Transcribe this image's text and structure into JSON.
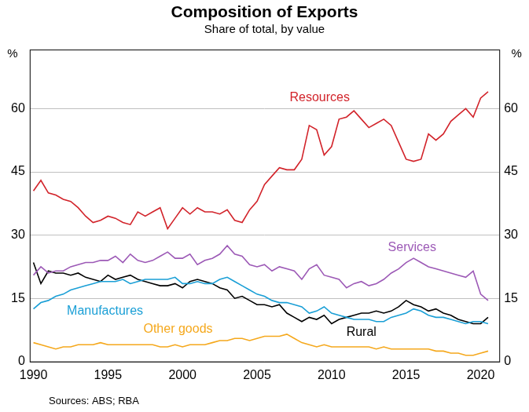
{
  "chart_data": {
    "type": "line",
    "title": "Composition of Exports",
    "subtitle": "Share of total, by value",
    "y_label": "%",
    "y2_label": "%",
    "source": "Sources: ABS; RBA",
    "x": [
      1990,
      1990.5,
      1991,
      1991.5,
      1992,
      1992.5,
      1993,
      1993.5,
      1994,
      1994.5,
      1995,
      1995.5,
      1996,
      1996.5,
      1997,
      1997.5,
      1998,
      1998.5,
      1999,
      1999.5,
      2000,
      2000.5,
      2001,
      2001.5,
      2002,
      2002.5,
      2003,
      2003.5,
      2004,
      2004.5,
      2005,
      2005.5,
      2006,
      2006.5,
      2007,
      2007.5,
      2008,
      2008.5,
      2009,
      2009.5,
      2010,
      2010.5,
      2011,
      2011.5,
      2012,
      2012.5,
      2013,
      2013.5,
      2014,
      2014.5,
      2015,
      2015.5,
      2016,
      2016.5,
      2017,
      2017.5,
      2018,
      2018.5,
      2019,
      2019.5,
      2020,
      2020.5
    ],
    "xlim": [
      1989.75,
      2021.25
    ],
    "xticks": [
      1990,
      1995,
      2000,
      2005,
      2010,
      2015,
      2020
    ],
    "ylim": [
      0,
      74
    ],
    "yticks": [
      0,
      15,
      30,
      45,
      60
    ],
    "y2lim": [
      0,
      74
    ],
    "y2ticks": [
      0,
      15,
      30,
      45,
      60
    ],
    "grid": true,
    "series": [
      {
        "name": "Resources",
        "color": "#d2232a",
        "values": [
          40.5,
          43,
          40,
          39.5,
          38.5,
          38,
          36.5,
          34.5,
          33,
          33.5,
          34.5,
          34,
          33,
          32.5,
          35.5,
          34.5,
          35.5,
          36.5,
          31.5,
          34,
          36.5,
          35,
          36.5,
          35.5,
          35.5,
          35,
          36,
          33.5,
          33,
          36,
          38,
          42,
          44,
          46,
          45.5,
          45.5,
          48,
          56,
          55,
          49,
          51,
          57.5,
          58,
          59.5,
          57.5,
          55.5,
          56.5,
          57.5,
          56,
          52,
          48,
          47.5,
          48,
          54,
          52.5,
          54,
          57,
          58.5,
          60,
          58,
          62.5,
          64
        ]
      },
      {
        "name": "Services",
        "color": "#9c59b6",
        "values": [
          20.5,
          22.5,
          21,
          21.5,
          21.5,
          22.5,
          23,
          23.5,
          23.5,
          24,
          24,
          25,
          23.5,
          25.5,
          24,
          23.5,
          24,
          25,
          26,
          24.5,
          24.5,
          25.5,
          23,
          24,
          24.5,
          25.5,
          27.5,
          25.5,
          25,
          23,
          22.5,
          23,
          21.5,
          22.5,
          22,
          21.5,
          19.5,
          22,
          23,
          20.5,
          20,
          19.5,
          17.5,
          18.5,
          19,
          18,
          18.5,
          19.5,
          21,
          22,
          23.5,
          24.5,
          23.5,
          22.5,
          22,
          21.5,
          21,
          20.5,
          20,
          21.5,
          16,
          14.5
        ]
      },
      {
        "name": "Manufactures",
        "color": "#1a9fd6",
        "values": [
          12.5,
          14,
          14.5,
          15.5,
          16,
          17,
          17.5,
          18,
          18.5,
          19,
          19,
          19,
          19.5,
          18.5,
          19,
          19.5,
          19.5,
          19.5,
          19.5,
          20,
          18.5,
          18.5,
          19,
          18.5,
          18.5,
          19.5,
          20,
          19,
          18,
          17,
          16,
          15.5,
          14.5,
          14,
          14,
          13.5,
          13,
          11.5,
          12,
          13,
          11.5,
          11,
          10.5,
          10,
          10,
          10,
          9.5,
          9.5,
          10.5,
          11,
          11.5,
          12.5,
          12,
          11,
          10.5,
          10.5,
          10,
          9.5,
          9,
          9.5,
          9.5,
          9
        ]
      },
      {
        "name": "Other goods",
        "color": "#f5a81c",
        "values": [
          4.5,
          4,
          3.5,
          3,
          3.5,
          3.5,
          4,
          4,
          4,
          4.5,
          4,
          4,
          4,
          4,
          4,
          4,
          4,
          3.5,
          3.5,
          4,
          3.5,
          4,
          4,
          4,
          4.5,
          5,
          5,
          5.5,
          5.5,
          5,
          5.5,
          6,
          6,
          6,
          6.5,
          5.5,
          4.5,
          4,
          3.5,
          4,
          3.5,
          3.5,
          3.5,
          3.5,
          3.5,
          3.5,
          3,
          3.5,
          3,
          3,
          3,
          3,
          3,
          3,
          2.5,
          2.5,
          2,
          2,
          1.5,
          1.5,
          2,
          2.5
        ]
      },
      {
        "name": "Rural",
        "color": "#000000",
        "values": [
          23.5,
          18.5,
          21.5,
          21,
          21,
          20.5,
          21,
          20,
          19.5,
          19,
          20.5,
          19.5,
          20,
          20.5,
          19.5,
          19,
          18.5,
          18,
          18,
          18.5,
          17.5,
          19,
          19.5,
          19,
          18.5,
          17.5,
          17,
          15,
          15.5,
          14.5,
          13.5,
          13.5,
          13,
          13.5,
          11.5,
          10.5,
          9.5,
          10.5,
          10,
          11,
          9,
          10,
          10.5,
          11,
          11.5,
          11.5,
          12,
          11.5,
          12,
          13,
          14.5,
          13.5,
          13,
          12,
          12.5,
          11.5,
          11,
          10,
          9.5,
          9,
          9,
          10.5
        ]
      }
    ]
  }
}
